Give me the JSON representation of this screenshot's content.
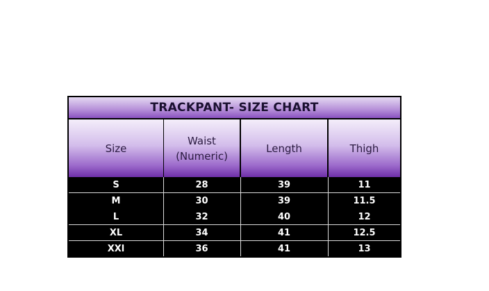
{
  "title": "TRACKPANT- SIZE CHART",
  "headers": [
    "Size",
    "Waist (Numeric)",
    "Length",
    "Thigh"
  ],
  "rows": [
    [
      "S",
      "28",
      "39",
      "11"
    ],
    [
      "M",
      "30",
      "39",
      "11.5"
    ],
    [
      "L",
      "32",
      "40",
      "12"
    ],
    [
      "XL",
      "34",
      "41",
      "12.5"
    ],
    [
      "XXl",
      "36",
      "41",
      "13"
    ]
  ],
  "colors": {
    "header_purple": "#6e2ea8",
    "body_background": "#000000"
  }
}
